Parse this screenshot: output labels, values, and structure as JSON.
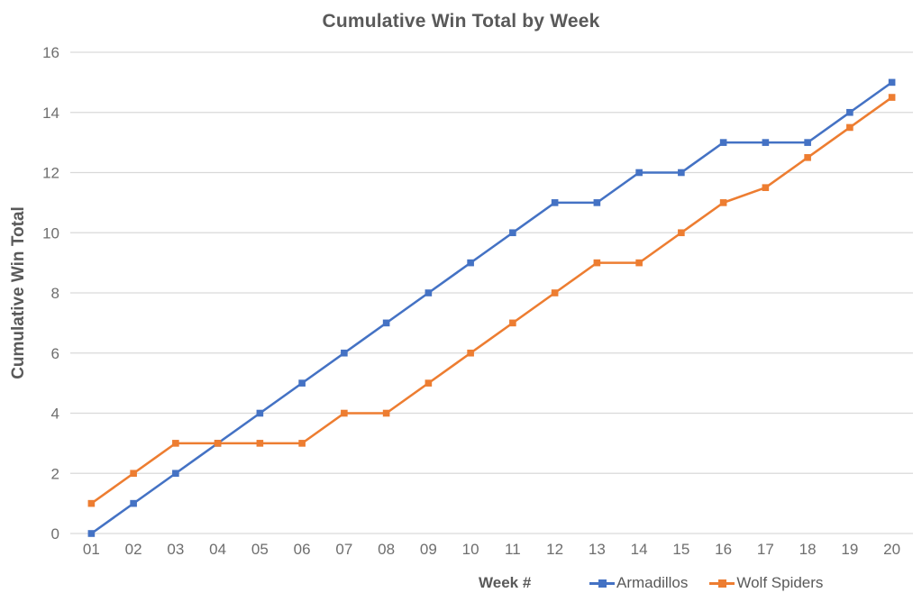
{
  "chart_data": {
    "type": "line",
    "title": "Cumulative Win Total by Week",
    "xlabel": "Week #",
    "ylabel": "Cumulative Win Total",
    "categories": [
      "01",
      "02",
      "03",
      "04",
      "05",
      "06",
      "07",
      "08",
      "09",
      "10",
      "11",
      "12",
      "13",
      "14",
      "15",
      "16",
      "17",
      "18",
      "19",
      "20"
    ],
    "series": [
      {
        "name": "Armadillos",
        "color": "#4472C4",
        "values": [
          0,
          1,
          2,
          3,
          4,
          5,
          6,
          7,
          8,
          9,
          10,
          11,
          11,
          12,
          12,
          13,
          13,
          13,
          14,
          15
        ]
      },
      {
        "name": "Wolf Spiders",
        "color": "#ED7D31",
        "values": [
          1,
          2,
          3,
          3,
          3,
          3,
          4,
          4,
          5,
          6,
          7,
          8,
          9,
          9,
          10,
          11,
          11.5,
          12.5,
          13.5,
          14.5
        ]
      }
    ],
    "ylim": [
      0,
      16
    ],
    "ytick_step": 2,
    "grid": true,
    "legend_position": "bottom",
    "marker": "square"
  },
  "colors": {
    "title": "#595959",
    "tick_label": "#6E6E6E",
    "gridline": "#D9D9D9",
    "background": "#FFFFFF"
  }
}
